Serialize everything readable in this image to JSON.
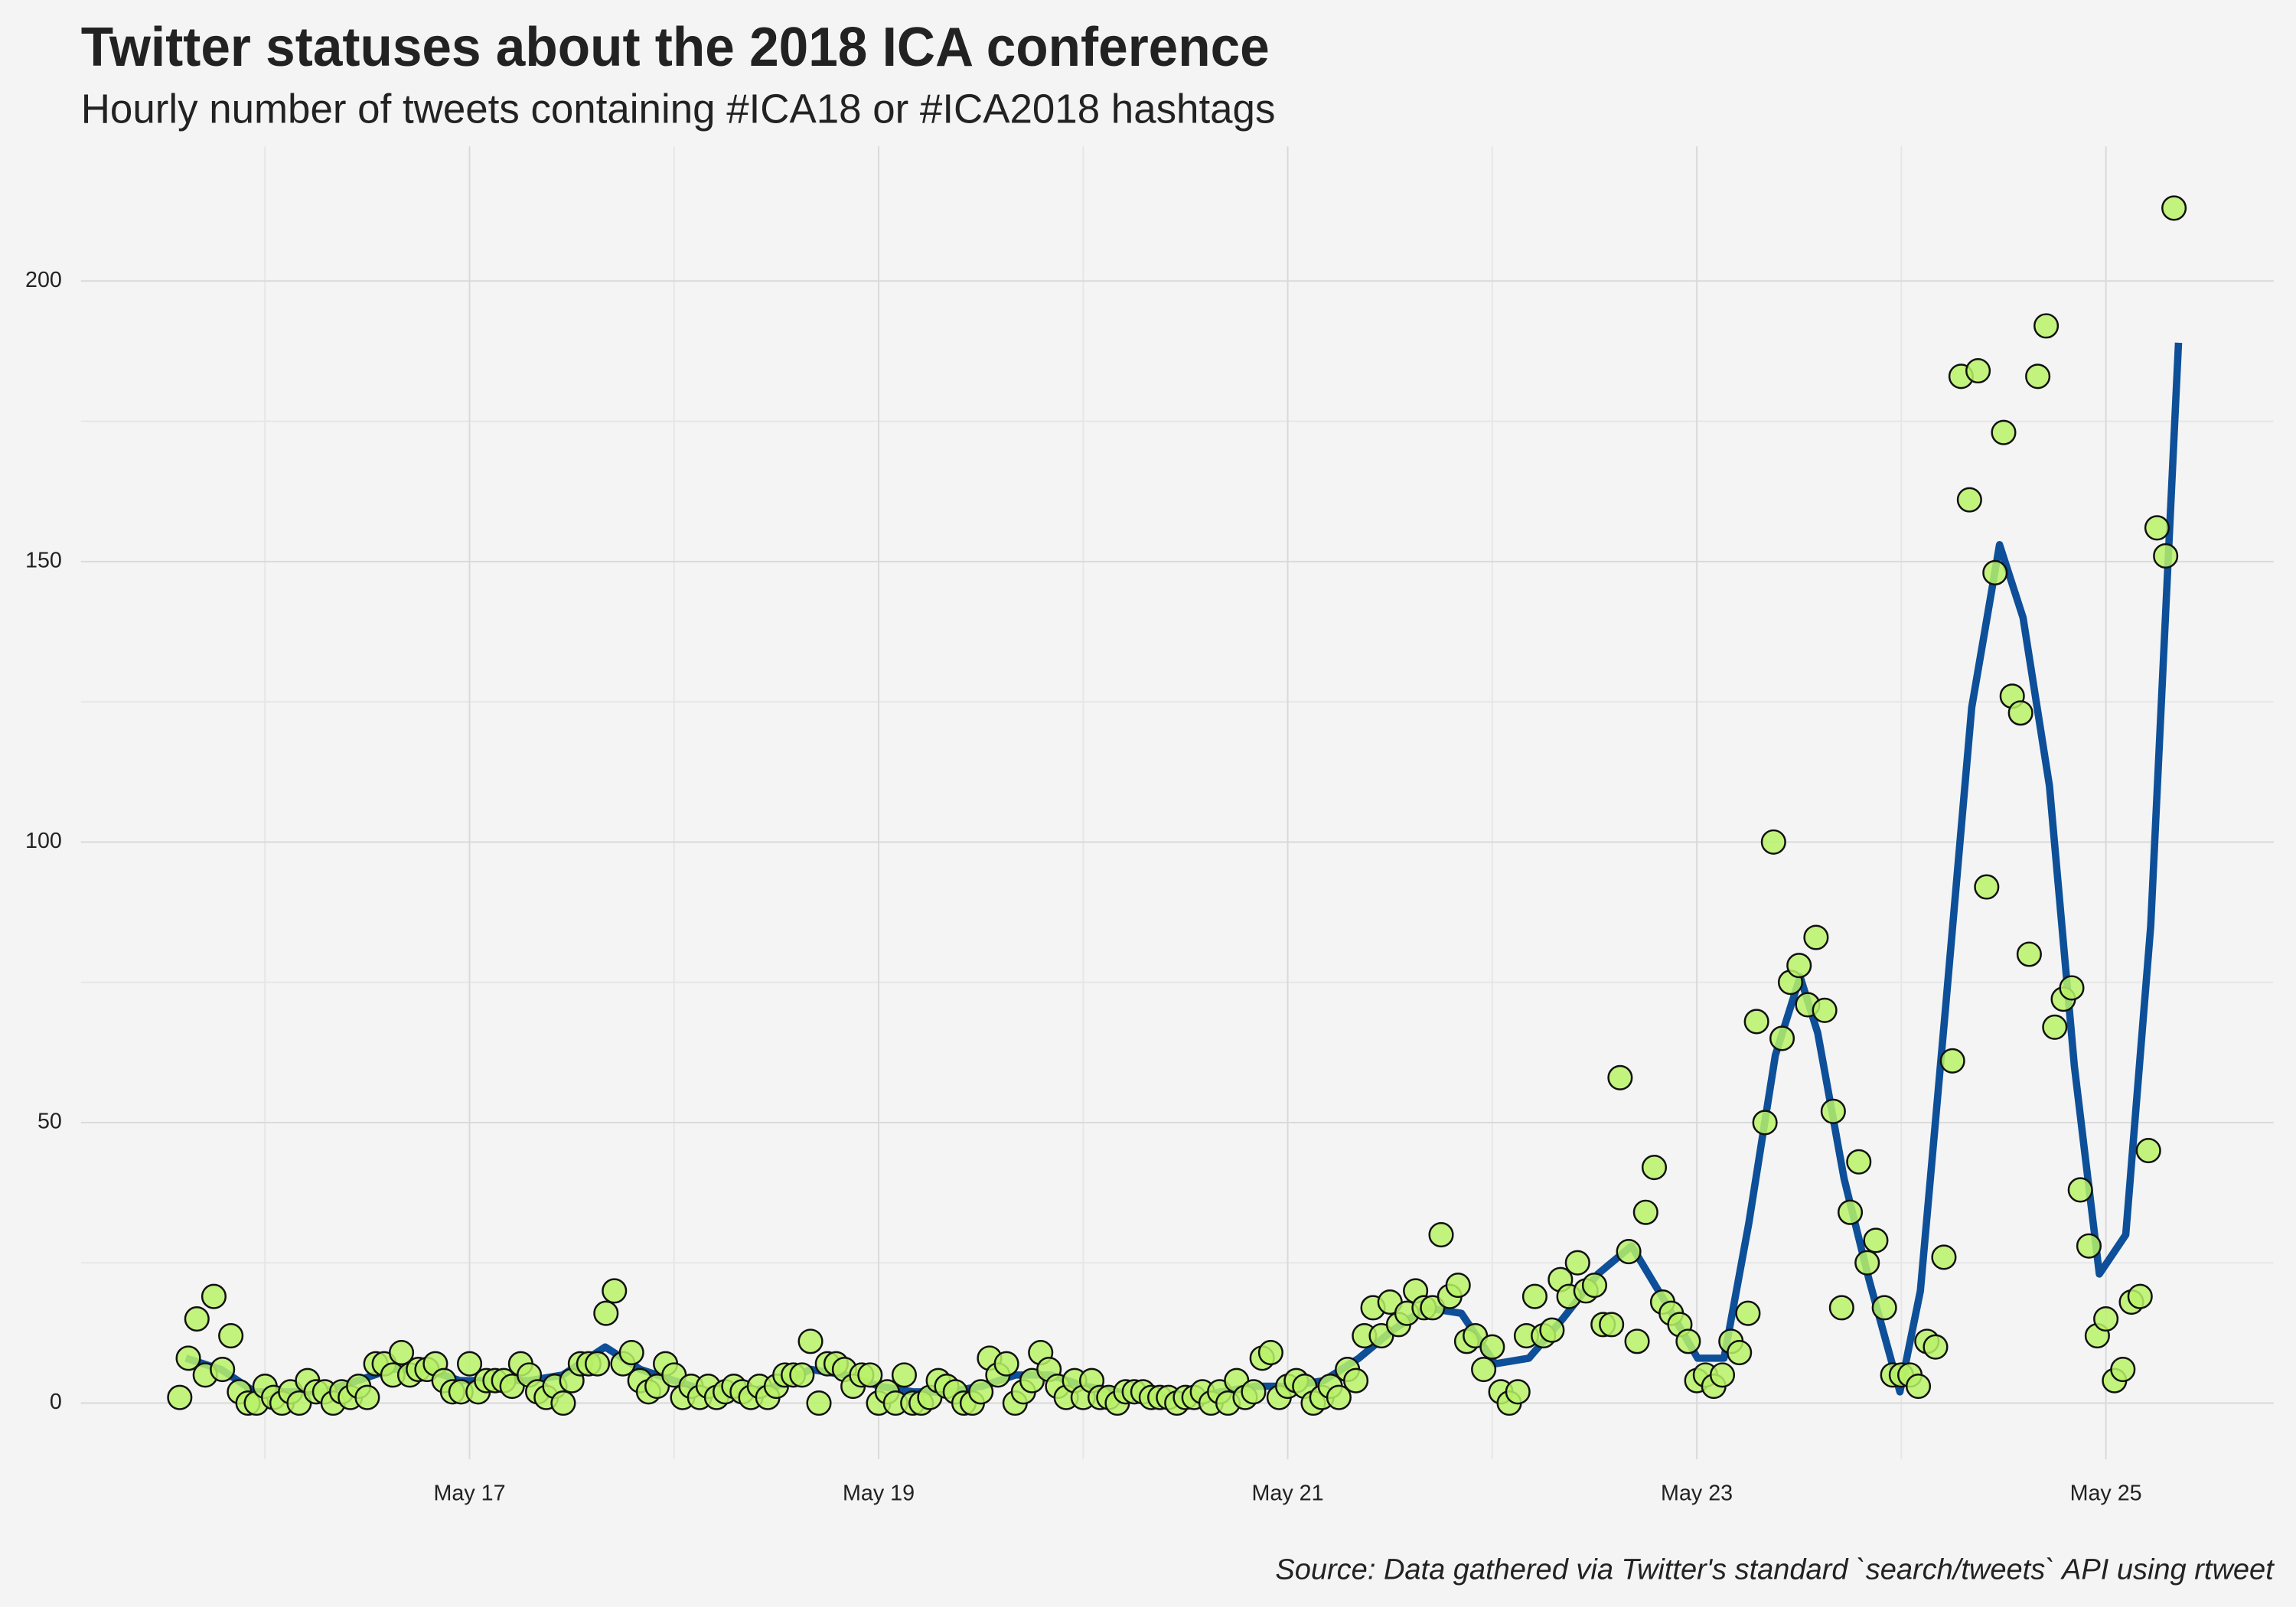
{
  "chart_data": {
    "type": "scatter",
    "title": "Twitter statuses about the 2018 ICA conference",
    "subtitle": "Hourly number of tweets containing #ICA18 or #ICA2018 hashtags",
    "caption": "Source: Data gathered via Twitter's standard `search/tweets` API using rtweet",
    "xlim": [
      15.1,
      25.82
    ],
    "ylim": [
      -10,
      224
    ],
    "xticks": [
      {
        "value": 17,
        "label": "May 17"
      },
      {
        "value": 19,
        "label": "May 19"
      },
      {
        "value": 21,
        "label": "May 21"
      },
      {
        "value": 23,
        "label": "May 23"
      },
      {
        "value": 25,
        "label": "May 25"
      }
    ],
    "xminor": [
      16,
      18,
      20,
      22,
      24
    ],
    "yticks": [
      0,
      50,
      100,
      150,
      200
    ],
    "yminor": [
      25,
      75,
      125,
      175
    ],
    "grid": true,
    "series": [
      {
        "type": "line",
        "color": "#0d4f98",
        "x": [
          15.613,
          15.785,
          15.95,
          16.115,
          16.287,
          16.452,
          16.616,
          16.789,
          16.953,
          17.118,
          17.29,
          17.455,
          17.663,
          17.835,
          18.0,
          18.172,
          18.337,
          18.502,
          18.667,
          18.839,
          19.004,
          19.168,
          19.341,
          19.505,
          19.67,
          19.842,
          20.007,
          20.172,
          20.344,
          20.509,
          20.674,
          20.846,
          21.011,
          21.176,
          21.348,
          21.513,
          21.677,
          21.849,
          22.014,
          22.179,
          22.344,
          22.516,
          22.681,
          22.846,
          23.004,
          23.133,
          23.254,
          23.384,
          23.505,
          23.591,
          23.72,
          23.842,
          23.993,
          24.093,
          24.215,
          24.344,
          24.48,
          24.595,
          24.724,
          24.846,
          24.968,
          25.097,
          25.219,
          25.355
        ],
        "values": [
          8,
          6,
          2,
          2,
          2,
          4,
          6,
          6,
          4,
          4,
          4,
          5,
          10,
          6,
          4,
          2,
          2,
          3,
          6,
          5,
          3,
          2,
          2,
          3,
          5,
          5,
          3,
          2,
          1,
          1,
          2,
          3,
          3,
          4,
          8,
          13,
          17,
          16,
          7,
          8,
          15,
          23,
          28,
          18,
          8,
          8,
          32,
          62,
          76,
          66,
          40,
          22,
          2,
          20,
          70,
          124,
          153,
          140,
          110,
          60,
          23,
          30,
          85,
          189
        ]
      },
      {
        "type": "scatter",
        "color": "#b9f267",
        "x": [
          15.583,
          15.625,
          15.667,
          15.708,
          15.75,
          15.792,
          15.833,
          15.875,
          15.917,
          15.958,
          16,
          16.042,
          16.083,
          16.125,
          16.167,
          16.208,
          16.25,
          16.292,
          16.333,
          16.375,
          16.417,
          16.458,
          16.5,
          16.542,
          16.583,
          16.625,
          16.667,
          16.708,
          16.75,
          16.792,
          16.833,
          16.875,
          16.917,
          16.958,
          17,
          17.042,
          17.083,
          17.125,
          17.167,
          17.208,
          17.25,
          17.292,
          17.333,
          17.375,
          17.417,
          17.458,
          17.5,
          17.542,
          17.583,
          17.625,
          17.667,
          17.708,
          17.75,
          17.792,
          17.833,
          17.875,
          17.917,
          17.958,
          18,
          18.042,
          18.083,
          18.125,
          18.167,
          18.208,
          18.25,
          18.292,
          18.333,
          18.375,
          18.417,
          18.458,
          18.5,
          18.542,
          18.583,
          18.625,
          18.667,
          18.708,
          18.75,
          18.792,
          18.833,
          18.875,
          18.917,
          18.958,
          19,
          19.042,
          19.083,
          19.125,
          19.167,
          19.208,
          19.25,
          19.292,
          19.333,
          19.375,
          19.417,
          19.458,
          19.5,
          19.542,
          19.583,
          19.625,
          19.667,
          19.708,
          19.75,
          19.792,
          19.833,
          19.875,
          19.917,
          19.958,
          20,
          20.042,
          20.083,
          20.125,
          20.167,
          20.208,
          20.25,
          20.292,
          20.333,
          20.375,
          20.417,
          20.458,
          20.5,
          20.542,
          20.583,
          20.625,
          20.667,
          20.708,
          20.75,
          20.792,
          20.833,
          20.875,
          20.917,
          20.958,
          21,
          21.042,
          21.083,
          21.125,
          21.167,
          21.208,
          21.25,
          21.292,
          21.333,
          21.375,
          21.417,
          21.458,
          21.5,
          21.542,
          21.583,
          21.625,
          21.667,
          21.708,
          21.75,
          21.792,
          21.833,
          21.875,
          21.917,
          21.958,
          22,
          22.042,
          22.083,
          22.125,
          22.167,
          22.208,
          22.25,
          22.292,
          22.333,
          22.375,
          22.417,
          22.458,
          22.5,
          22.542,
          22.583,
          22.625,
          22.667,
          22.708,
          22.75,
          22.792,
          22.833,
          22.875,
          22.917,
          22.958,
          23,
          23.042,
          23.083,
          23.125,
          23.167,
          23.208,
          23.25,
          23.292,
          23.333,
          23.375,
          23.417,
          23.458,
          23.5,
          23.542,
          23.583,
          23.625,
          23.667,
          23.708,
          23.75,
          23.792,
          23.833,
          23.875,
          23.917,
          23.958,
          24,
          24.042,
          24.083,
          24.125,
          24.167,
          24.208,
          24.25,
          24.292,
          24.333,
          24.375,
          24.417,
          24.458,
          24.5,
          24.542,
          24.583,
          24.625,
          24.667,
          24.708,
          24.75,
          24.792,
          24.833,
          24.875,
          24.917,
          24.958,
          25,
          25.042,
          25.083,
          25.125,
          25.167,
          25.208,
          25.25,
          25.292,
          25.333
        ],
        "values": [
          1,
          8,
          15,
          5,
          19,
          6,
          12,
          2,
          0,
          0,
          3,
          1,
          0,
          2,
          0,
          4,
          2,
          2,
          0,
          2,
          1,
          3,
          1,
          7,
          7,
          5,
          9,
          5,
          6,
          6,
          7,
          4,
          2,
          2,
          7,
          2,
          4,
          4,
          4,
          3,
          7,
          5,
          2,
          1,
          3,
          0,
          4,
          7,
          7,
          7,
          16,
          20,
          7,
          9,
          4,
          2,
          3,
          7,
          5,
          1,
          3,
          1,
          3,
          1,
          2,
          3,
          2,
          1,
          3,
          1,
          3,
          5,
          5,
          5,
          11,
          0,
          7,
          7,
          6,
          3,
          5,
          5,
          0,
          2,
          0,
          5,
          0,
          0,
          1,
          4,
          3,
          2,
          0,
          0,
          2,
          8,
          5,
          7,
          0,
          2,
          4,
          9,
          6,
          3,
          1,
          4,
          1,
          4,
          1,
          1,
          0,
          2,
          2,
          2,
          1,
          1,
          1,
          0,
          1,
          1,
          2,
          0,
          2,
          0,
          4,
          1,
          2,
          8,
          9,
          1,
          3,
          4,
          3,
          0,
          1,
          3,
          1,
          6,
          4,
          12,
          17,
          12,
          18,
          14,
          16,
          20,
          17,
          17,
          30,
          19,
          21,
          11,
          12,
          6,
          10,
          2,
          0,
          2,
          12,
          19,
          12,
          13,
          22,
          19,
          25,
          20,
          21,
          14,
          14,
          58,
          27,
          11,
          34,
          42,
          18,
          16,
          14,
          11,
          4,
          5,
          3,
          5,
          11,
          9,
          16,
          68,
          50,
          100,
          65,
          75,
          78,
          71,
          83,
          70,
          52,
          17,
          34,
          43,
          25,
          29,
          17,
          5,
          5,
          5,
          3,
          11,
          10,
          26,
          61,
          183,
          161,
          184,
          92,
          148,
          173,
          126,
          123,
          80,
          183,
          192,
          67,
          72,
          74,
          38,
          28,
          12,
          15,
          4,
          6,
          18,
          19,
          45,
          156,
          151,
          213
        ]
      }
    ]
  }
}
